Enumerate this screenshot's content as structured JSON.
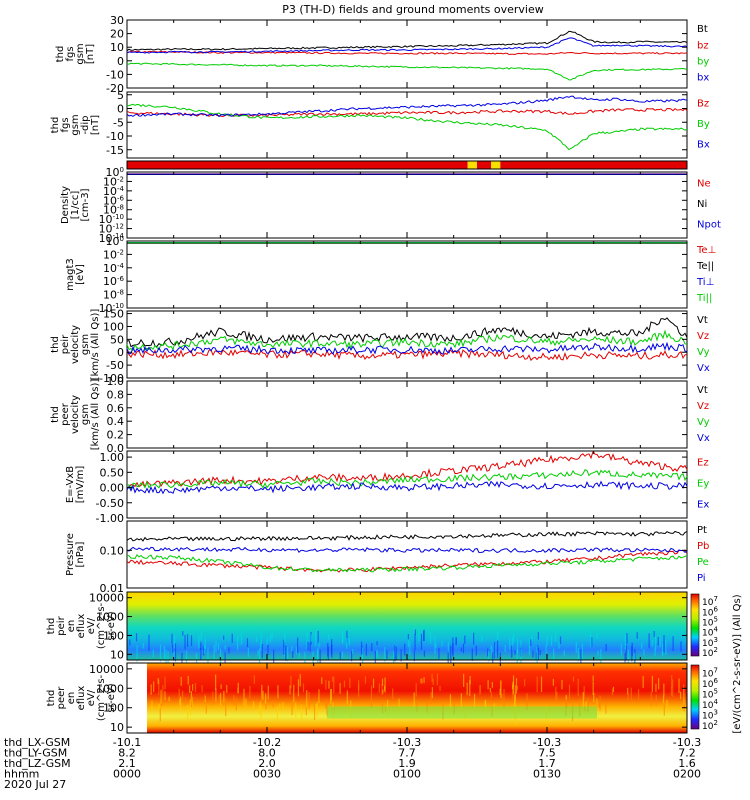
{
  "page": {
    "title": "P3 (TH-D) fields and ground moments overview"
  },
  "colors": {
    "black": "#000000",
    "red": "#e00000",
    "green": "#00cc00",
    "blue": "#0000e0",
    "yellow": "#f8e000",
    "purple": "#7a0a7a"
  },
  "x_axis": {
    "orbit_rows": [
      {
        "label": "thd_LX-GSM",
        "values": [
          "-10.1",
          "-10.2",
          "-10.3",
          "-10.3",
          "-10.3"
        ]
      },
      {
        "label": "thd_LY-GSM",
        "values": [
          "8.2",
          "8.0",
          "7.7",
          "7.5",
          "7.2"
        ]
      },
      {
        "label": "thd_LZ-GSM",
        "values": [
          "2.1",
          "2.0",
          "1.9",
          "1.7",
          "1.6"
        ]
      },
      {
        "label": "hhmm",
        "values": [
          "0000",
          "0030",
          "0100",
          "0130",
          "0200"
        ]
      }
    ],
    "date": "2020 Jul 27"
  },
  "chart_data": [
    {
      "type": "line",
      "ylabel_lines": [
        "thd",
        "fgs",
        "gsm",
        "[nT]"
      ],
      "ylim": [
        -20,
        30
      ],
      "ytick_labels": [
        "-20",
        "-10",
        "0",
        "10",
        "20",
        "30"
      ],
      "x": [
        0,
        10,
        20,
        30,
        40,
        50,
        60,
        70,
        80,
        90,
        95,
        100,
        105,
        110,
        120
      ],
      "series": [
        {
          "name": "Bt",
          "color": "black",
          "values": [
            8,
            8.5,
            8.5,
            9,
            9.5,
            10,
            10.5,
            11,
            12,
            13,
            22,
            14,
            13.5,
            14,
            13.5
          ]
        },
        {
          "name": "bz",
          "color": "red",
          "values": [
            6.5,
            6.5,
            6,
            6,
            5.8,
            5.5,
            5.5,
            5.5,
            5.2,
            5,
            6,
            5.5,
            5.5,
            5.5,
            5.5
          ]
        },
        {
          "name": "by",
          "color": "green",
          "values": [
            -2,
            -2.5,
            -3,
            -3.5,
            -3.5,
            -4,
            -4.5,
            -5,
            -5.5,
            -6,
            -14,
            -7,
            -6.5,
            -6.5,
            -6
          ]
        },
        {
          "name": "bx",
          "color": "blue",
          "values": [
            6,
            6.5,
            6.5,
            7,
            7.5,
            8,
            8,
            8.5,
            9,
            10,
            17,
            11,
            11.5,
            11,
            10.5
          ]
        }
      ]
    },
    {
      "type": "line",
      "ylabel_lines": [
        "thd",
        "fgs",
        "gsm",
        "-dip",
        "[nT]"
      ],
      "ylim": [
        -18,
        6
      ],
      "ytick_labels": [
        "-15",
        "-10",
        "-5",
        "0",
        "5"
      ],
      "x": [
        0,
        10,
        20,
        30,
        40,
        50,
        60,
        70,
        80,
        90,
        95,
        100,
        105,
        110,
        120
      ],
      "series": [
        {
          "name": "Bz",
          "color": "red",
          "values": [
            -1.5,
            -2,
            -2.5,
            -2.5,
            -2,
            -2,
            -1.5,
            -1.5,
            -1,
            -1,
            -2,
            -1,
            -0.5,
            -0.5,
            -0.5
          ]
        },
        {
          "name": "By",
          "color": "green",
          "values": [
            1.5,
            0.5,
            -2,
            -3.5,
            -3,
            -2.5,
            -3.5,
            -5,
            -6,
            -8,
            -15,
            -9,
            -8.5,
            -7.5,
            -7.5
          ]
        },
        {
          "name": "Bx",
          "color": "blue",
          "values": [
            -2.5,
            -2,
            -2.5,
            -2,
            -1,
            0,
            0.5,
            1,
            1.5,
            3,
            4.5,
            3,
            3.5,
            2.5,
            3
          ]
        }
      ]
    },
    {
      "type": "bar",
      "note": "flag strip",
      "segments": [
        {
          "from": 0,
          "to": 73,
          "color": "red"
        },
        {
          "from": 73,
          "to": 75,
          "color": "yellow"
        },
        {
          "from": 75,
          "to": 78,
          "color": "red"
        },
        {
          "from": 78,
          "to": 80,
          "color": "yellow"
        },
        {
          "from": 80,
          "to": 120,
          "color": "red"
        }
      ]
    },
    {
      "type": "line",
      "ylabel_lines": [
        "Density",
        "[1/cc]",
        "[cm-3]"
      ],
      "scale": "log",
      "ylim": [
        1e-14,
        1
      ],
      "ytick_labels": [
        "10^-14",
        "10^-12",
        "10^-10",
        "10^-8",
        "10^-6",
        "10^-4",
        "10^-2",
        "10^0"
      ],
      "x": [
        0,
        120
      ],
      "series": [
        {
          "name": "Ne",
          "color": "red",
          "values": [
            0.4,
            0.4
          ]
        },
        {
          "name": "Ni",
          "color": "black",
          "values": [
            0.3,
            0.3
          ]
        },
        {
          "name": "Npot",
          "color": "blue",
          "values": [
            0.35,
            0.35
          ]
        }
      ]
    },
    {
      "type": "line",
      "ylabel_lines": [
        "magt3",
        "[eV]"
      ],
      "scale": "log",
      "ylim": [
        1e-10,
        1
      ],
      "ytick_labels": [
        "10^-10",
        "10^-8",
        "10^-6",
        "10^-4",
        "10^-2",
        "10^0"
      ],
      "x": [
        0,
        120
      ],
      "series": [
        {
          "name": "Te⊥",
          "color": "red",
          "values": [
            0.5,
            0.5
          ]
        },
        {
          "name": "Te||",
          "color": "black",
          "values": [
            0.45,
            0.45
          ]
        },
        {
          "name": "Ti⊥",
          "color": "blue",
          "values": [
            0.6,
            0.6
          ]
        },
        {
          "name": "Ti||",
          "color": "green",
          "values": [
            0.55,
            0.55
          ]
        }
      ]
    },
    {
      "type": "line",
      "ylabel_lines": [
        "thd",
        "peir",
        "velocity",
        "gsm",
        "[km/s (All Qs)]"
      ],
      "ylim": [
        -100,
        160
      ],
      "ytick_labels": [
        "-100",
        "-50",
        "0",
        "50",
        "100",
        "150"
      ],
      "x": [
        0,
        10,
        20,
        30,
        40,
        50,
        60,
        70,
        80,
        90,
        100,
        110,
        115,
        120
      ],
      "series": [
        {
          "name": "Vt",
          "color": "black",
          "values": [
            35,
            40,
            80,
            50,
            60,
            55,
            60,
            55,
            90,
            60,
            80,
            70,
            140,
            60
          ]
        },
        {
          "name": "Vz",
          "color": "red",
          "values": [
            -5,
            -10,
            0,
            -10,
            -5,
            -15,
            -10,
            -5,
            -10,
            -20,
            -10,
            -15,
            -10,
            -10
          ]
        },
        {
          "name": "Vy",
          "color": "green",
          "values": [
            20,
            25,
            50,
            30,
            35,
            30,
            40,
            30,
            60,
            40,
            50,
            40,
            70,
            40
          ]
        },
        {
          "name": "Vx",
          "color": "blue",
          "values": [
            5,
            10,
            15,
            10,
            5,
            10,
            10,
            5,
            15,
            10,
            20,
            15,
            25,
            15
          ]
        }
      ]
    },
    {
      "type": "line",
      "ylabel_lines": [
        "thd",
        "peer",
        "velocity",
        "gsm",
        "[km/s (All Qs)]"
      ],
      "ylim": [
        0,
        1
      ],
      "ytick_labels": [
        "0.0",
        "0.2",
        "0.4",
        "0.6",
        "0.8",
        "1.0"
      ],
      "x": [],
      "series": [
        {
          "name": "Vt",
          "color": "black",
          "values": []
        },
        {
          "name": "Vz",
          "color": "red",
          "values": []
        },
        {
          "name": "Vy",
          "color": "green",
          "values": []
        },
        {
          "name": "Vx",
          "color": "blue",
          "values": []
        }
      ]
    },
    {
      "type": "line",
      "ylabel_lines": [
        "E=-VxB",
        "[mV/m]"
      ],
      "ylim": [
        -1,
        1.2
      ],
      "ytick_labels": [
        "-1.00",
        "-0.50",
        "0.00",
        "0.50",
        "1.00"
      ],
      "x": [
        0,
        10,
        20,
        30,
        40,
        50,
        60,
        70,
        80,
        90,
        100,
        110,
        120
      ],
      "series": [
        {
          "name": "Ez",
          "color": "red",
          "values": [
            0.05,
            0.15,
            0.25,
            0.2,
            0.35,
            0.3,
            0.4,
            0.55,
            0.7,
            0.9,
            1.1,
            0.8,
            0.6
          ]
        },
        {
          "name": "Ey",
          "color": "green",
          "values": [
            0.05,
            0.1,
            0.15,
            0.1,
            0.2,
            0.15,
            0.25,
            0.3,
            0.35,
            0.4,
            0.5,
            0.4,
            0.35
          ]
        },
        {
          "name": "Ex",
          "color": "blue",
          "values": [
            -0.05,
            -0.1,
            0.0,
            -0.05,
            0.0,
            0.05,
            0.0,
            0.05,
            0.1,
            0.05,
            0.1,
            0.05,
            0.05
          ]
        }
      ]
    },
    {
      "type": "line",
      "ylabel_lines": [
        "Pressure",
        "[nPa]"
      ],
      "scale": "log",
      "ylim": [
        0.01,
        0.6
      ],
      "ytick_labels": [
        "0.01",
        "0.10"
      ],
      "x": [
        0,
        10,
        20,
        30,
        40,
        50,
        60,
        70,
        80,
        90,
        100,
        110,
        120
      ],
      "series": [
        {
          "name": "Pt",
          "color": "black",
          "values": [
            0.19,
            0.2,
            0.2,
            0.21,
            0.21,
            0.22,
            0.23,
            0.24,
            0.25,
            0.27,
            0.28,
            0.27,
            0.29
          ]
        },
        {
          "name": "Pb",
          "color": "red",
          "values": [
            0.05,
            0.045,
            0.04,
            0.035,
            0.03,
            0.03,
            0.035,
            0.04,
            0.045,
            0.05,
            0.06,
            0.08,
            0.09
          ]
        },
        {
          "name": "Pe",
          "color": "green",
          "values": [
            0.07,
            0.065,
            0.05,
            0.035,
            0.03,
            0.03,
            0.032,
            0.035,
            0.04,
            0.045,
            0.05,
            0.06,
            0.065
          ]
        },
        {
          "name": "Pi",
          "color": "blue",
          "values": [
            0.11,
            0.11,
            0.105,
            0.105,
            0.1,
            0.105,
            0.1,
            0.1,
            0.1,
            0.1,
            0.105,
            0.1,
            0.1
          ]
        }
      ]
    },
    {
      "type": "heatmap",
      "ylabel_lines": [
        "thd",
        "peir",
        "en",
        "eflux",
        "eV/",
        "(cm^2-s-",
        "sr-eV)"
      ],
      "scale": "log",
      "ylim": [
        5,
        20000
      ],
      "ytick_labels": [
        "10",
        "100",
        "1000",
        "10000"
      ]
    },
    {
      "type": "heatmap",
      "ylabel_lines": [
        "thd",
        "peer",
        "en",
        "eflux",
        "eV/",
        "(cm^2-s-",
        "sr-eV)"
      ],
      "scale": "log",
      "ylim": [
        5,
        20000
      ],
      "ytick_labels": [
        "10",
        "100",
        "1000",
        "10000"
      ]
    }
  ],
  "colorbar": {
    "tick_labels": [
      "10^2",
      "10^3",
      "10^4",
      "10^5",
      "10^6",
      "10^7"
    ],
    "title": "[eV/(cm^2-s-sr-eV)] (All Qs)"
  }
}
